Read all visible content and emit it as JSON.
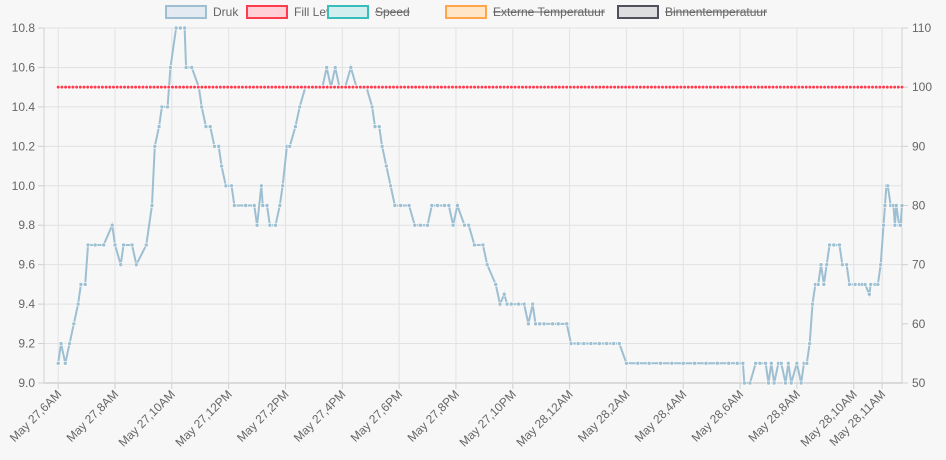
{
  "chart_data": {
    "type": "line",
    "x_ticks": [
      "May 27,6AM",
      "May 27,8AM",
      "May 27,10AM",
      "May 27,12PM",
      "May 27,2PM",
      "May 27,4PM",
      "May 27,6PM",
      "May 27,8PM",
      "May 27,10PM",
      "May 28,12AM",
      "May 28,2AM",
      "May 28,4AM",
      "May 28,6AM",
      "May 28,8AM",
      "May 28,10AM",
      "May 28,11AM"
    ],
    "x_hours": [
      6,
      8,
      10,
      12,
      14,
      16,
      18,
      20,
      22,
      24,
      26,
      28,
      30,
      32,
      34,
      35
    ],
    "x_range": [
      5.5,
      35.7
    ],
    "y_left": {
      "min": 9.0,
      "max": 10.8,
      "ticks": [
        "9.0",
        "9.2",
        "9.4",
        "9.6",
        "9.8",
        "10.0",
        "10.2",
        "10.4",
        "10.6",
        "10.8"
      ]
    },
    "y_right": {
      "min": 50,
      "max": 110,
      "ticks": [
        "50",
        "60",
        "70",
        "80",
        "90",
        "100",
        "110"
      ]
    },
    "legend": [
      {
        "label": "Druk",
        "fill": "#e4eaf1",
        "stroke": "#9dbfd2",
        "hidden": false
      },
      {
        "label": "Fill Level",
        "fill": "#ffd0d6",
        "stroke": "#ff3b4e",
        "hidden": false
      },
      {
        "label": "Speed",
        "fill": "#d2eeee",
        "stroke": "#3bbcbc",
        "hidden": true
      },
      {
        "label": "Externe Temperatuur",
        "fill": "#ffe6c7",
        "stroke": "#ffa64a",
        "hidden": true
      },
      {
        "label": "Binnentemperatuur",
        "fill": "#dddde0",
        "stroke": "#50505a",
        "hidden": true
      }
    ],
    "series": [
      {
        "name": "Druk",
        "axis": "left",
        "color": "#9dbfd2",
        "points": [
          [
            6.0,
            9.1
          ],
          [
            6.1,
            9.2
          ],
          [
            6.25,
            9.1
          ],
          [
            6.4,
            9.2
          ],
          [
            6.55,
            9.3
          ],
          [
            6.7,
            9.4
          ],
          [
            6.8,
            9.5
          ],
          [
            6.95,
            9.5
          ],
          [
            7.05,
            9.7
          ],
          [
            7.3,
            9.7
          ],
          [
            7.6,
            9.7
          ],
          [
            7.9,
            9.8
          ],
          [
            8.0,
            9.7
          ],
          [
            8.2,
            9.6
          ],
          [
            8.3,
            9.7
          ],
          [
            8.6,
            9.7
          ],
          [
            8.75,
            9.6
          ],
          [
            9.1,
            9.7
          ],
          [
            9.3,
            9.9
          ],
          [
            9.4,
            10.2
          ],
          [
            9.55,
            10.3
          ],
          [
            9.65,
            10.4
          ],
          [
            9.85,
            10.4
          ],
          [
            9.95,
            10.6
          ],
          [
            10.15,
            10.8
          ],
          [
            10.3,
            10.8
          ],
          [
            10.45,
            10.8
          ],
          [
            10.5,
            10.6
          ],
          [
            10.7,
            10.6
          ],
          [
            10.95,
            10.5
          ],
          [
            11.05,
            10.4
          ],
          [
            11.2,
            10.3
          ],
          [
            11.35,
            10.3
          ],
          [
            11.5,
            10.2
          ],
          [
            11.65,
            10.2
          ],
          [
            11.75,
            10.1
          ],
          [
            11.9,
            10.0
          ],
          [
            12.1,
            10.0
          ],
          [
            12.2,
            9.9
          ],
          [
            12.6,
            9.9
          ],
          [
            12.9,
            9.9
          ],
          [
            13.0,
            9.8
          ],
          [
            13.15,
            10.0
          ],
          [
            13.2,
            9.9
          ],
          [
            13.35,
            9.9
          ],
          [
            13.45,
            9.8
          ],
          [
            13.65,
            9.8
          ],
          [
            13.8,
            9.9
          ],
          [
            13.9,
            10.0
          ],
          [
            14.05,
            10.2
          ],
          [
            14.15,
            10.2
          ],
          [
            14.35,
            10.3
          ],
          [
            14.5,
            10.4
          ],
          [
            14.7,
            10.5
          ],
          [
            14.85,
            10.5
          ],
          [
            15.05,
            10.5
          ],
          [
            15.2,
            10.5
          ],
          [
            15.3,
            10.5
          ],
          [
            15.45,
            10.6
          ],
          [
            15.6,
            10.5
          ],
          [
            15.75,
            10.6
          ],
          [
            15.9,
            10.5
          ],
          [
            16.1,
            10.5
          ],
          [
            16.3,
            10.6
          ],
          [
            16.5,
            10.5
          ],
          [
            16.7,
            10.5
          ],
          [
            16.85,
            10.5
          ],
          [
            17.05,
            10.4
          ],
          [
            17.15,
            10.3
          ],
          [
            17.3,
            10.3
          ],
          [
            17.4,
            10.2
          ],
          [
            17.55,
            10.1
          ],
          [
            17.7,
            10.0
          ],
          [
            17.85,
            9.9
          ],
          [
            18.05,
            9.9
          ],
          [
            18.35,
            9.9
          ],
          [
            18.55,
            9.8
          ],
          [
            18.75,
            9.8
          ],
          [
            19.0,
            9.8
          ],
          [
            19.15,
            9.9
          ],
          [
            19.35,
            9.9
          ],
          [
            19.6,
            9.9
          ],
          [
            19.75,
            9.9
          ],
          [
            19.9,
            9.8
          ],
          [
            20.05,
            9.9
          ],
          [
            20.3,
            9.8
          ],
          [
            20.45,
            9.8
          ],
          [
            20.65,
            9.7
          ],
          [
            20.95,
            9.7
          ],
          [
            21.1,
            9.6
          ],
          [
            21.4,
            9.5
          ],
          [
            21.55,
            9.4
          ],
          [
            21.7,
            9.45
          ],
          [
            21.8,
            9.4
          ],
          [
            21.95,
            9.4
          ],
          [
            22.2,
            9.4
          ],
          [
            22.4,
            9.4
          ],
          [
            22.55,
            9.3
          ],
          [
            22.7,
            9.4
          ],
          [
            22.8,
            9.3
          ],
          [
            22.95,
            9.3
          ],
          [
            23.1,
            9.3
          ],
          [
            23.4,
            9.3
          ],
          [
            23.6,
            9.3
          ],
          [
            23.9,
            9.3
          ],
          [
            24.05,
            9.2
          ],
          [
            24.3,
            9.2
          ],
          [
            24.5,
            9.2
          ],
          [
            24.75,
            9.2
          ],
          [
            25.05,
            9.2
          ],
          [
            25.3,
            9.2
          ],
          [
            25.55,
            9.2
          ],
          [
            25.75,
            9.2
          ],
          [
            26.0,
            9.1
          ],
          [
            26.4,
            9.1
          ],
          [
            26.8,
            9.1
          ],
          [
            27.2,
            9.1
          ],
          [
            27.6,
            9.1
          ],
          [
            28.0,
            9.1
          ],
          [
            28.4,
            9.1
          ],
          [
            28.8,
            9.1
          ],
          [
            29.2,
            9.1
          ],
          [
            29.6,
            9.1
          ],
          [
            29.9,
            9.1
          ],
          [
            30.1,
            9.1
          ],
          [
            30.15,
            9.0
          ],
          [
            30.35,
            9.0
          ],
          [
            30.55,
            9.1
          ],
          [
            30.7,
            9.1
          ],
          [
            30.9,
            9.1
          ],
          [
            31.0,
            9.0
          ],
          [
            31.1,
            9.1
          ],
          [
            31.2,
            9.0
          ],
          [
            31.35,
            9.1
          ],
          [
            31.45,
            9.1
          ],
          [
            31.6,
            9.0
          ],
          [
            31.7,
            9.1
          ],
          [
            31.8,
            9.0
          ],
          [
            32.0,
            9.1
          ],
          [
            32.15,
            9.0
          ],
          [
            32.25,
            9.1
          ],
          [
            32.35,
            9.1
          ],
          [
            32.45,
            9.2
          ],
          [
            32.55,
            9.4
          ],
          [
            32.65,
            9.5
          ],
          [
            32.75,
            9.5
          ],
          [
            32.85,
            9.6
          ],
          [
            32.95,
            9.5
          ],
          [
            33.05,
            9.6
          ],
          [
            33.15,
            9.7
          ],
          [
            33.3,
            9.7
          ],
          [
            33.5,
            9.7
          ],
          [
            33.6,
            9.6
          ],
          [
            33.75,
            9.6
          ],
          [
            33.85,
            9.5
          ],
          [
            34.05,
            9.5
          ],
          [
            34.2,
            9.5
          ],
          [
            34.3,
            9.5
          ],
          [
            34.4,
            9.5
          ],
          [
            34.55,
            9.45
          ],
          [
            34.6,
            9.5
          ],
          [
            34.75,
            9.5
          ],
          [
            34.85,
            9.5
          ],
          [
            34.95,
            9.6
          ],
          [
            35.05,
            9.8
          ],
          [
            35.1,
            9.9
          ],
          [
            35.15,
            10.0
          ],
          [
            35.2,
            10.0
          ],
          [
            35.3,
            9.9
          ],
          [
            35.4,
            9.9
          ],
          [
            35.45,
            9.8
          ],
          [
            35.5,
            9.9
          ],
          [
            35.6,
            9.8
          ],
          [
            35.65,
            9.8
          ],
          [
            35.7,
            9.9
          ]
        ]
      },
      {
        "name": "Fill Level",
        "axis": "right",
        "color": "#ff3b4e",
        "constant": 100,
        "x_from": 6.0,
        "x_to": 35.7,
        "n_points": 230
      }
    ]
  }
}
